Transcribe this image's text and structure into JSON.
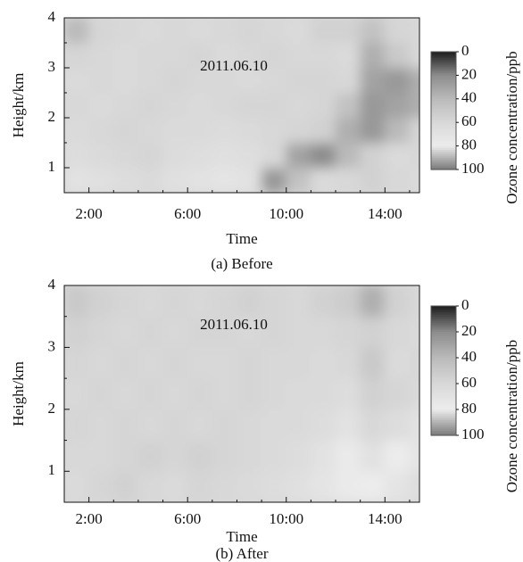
{
  "chart_data": [
    {
      "type": "heatmap",
      "annotation": "2011.06.10",
      "caption": "(a) Before",
      "x_label": "Time",
      "y_label": "Height/km",
      "colorbar_label": "Ozone concentration/ppb",
      "xlim": [
        1,
        15.4
      ],
      "ylim": [
        0.5,
        4
      ],
      "xticks": [
        {
          "value": 2,
          "label": "2:00"
        },
        {
          "value": 6,
          "label": "6:00"
        },
        {
          "value": 10,
          "label": "10:00"
        },
        {
          "value": 14,
          "label": "14:00"
        }
      ],
      "xminor_ticks": [
        1,
        3,
        4,
        5,
        7,
        8,
        9,
        11,
        12,
        13,
        15
      ],
      "yticks": [
        1,
        2,
        3,
        4
      ],
      "yminor_ticks": [
        0.5,
        1.5,
        2.5,
        3.5
      ],
      "xbins": [
        1,
        2,
        3,
        4,
        5,
        6,
        7,
        8,
        9,
        10,
        11,
        12,
        13,
        14,
        15,
        16
      ],
      "ybins": [
        0.5,
        1,
        1.5,
        2,
        2.5,
        3,
        3.5,
        4
      ],
      "z": [
        [
          70,
          68,
          65,
          62,
          68,
          70,
          72,
          70,
          25,
          45,
          62,
          60,
          55,
          60,
          62
        ],
        [
          65,
          62,
          60,
          58,
          64,
          66,
          68,
          66,
          60,
          30,
          20,
          40,
          55,
          62,
          60
        ],
        [
          62,
          60,
          58,
          60,
          62,
          62,
          64,
          62,
          60,
          58,
          55,
          35,
          25,
          40,
          58
        ],
        [
          60,
          62,
          60,
          58,
          60,
          62,
          60,
          58,
          58,
          60,
          58,
          45,
          25,
          30,
          35
        ],
        [
          62,
          60,
          62,
          60,
          58,
          60,
          60,
          62,
          60,
          58,
          58,
          60,
          30,
          25,
          35
        ],
        [
          58,
          60,
          62,
          60,
          60,
          58,
          62,
          60,
          58,
          60,
          60,
          62,
          35,
          50,
          60
        ],
        [
          40,
          58,
          60,
          62,
          60,
          62,
          60,
          58,
          60,
          62,
          55,
          55,
          45,
          58,
          60
        ]
      ],
      "clim": [
        0,
        100
      ],
      "cticks": [
        0,
        20,
        40,
        60,
        80,
        100
      ],
      "colormap": [
        "#1c1c1c",
        "#8c8c8c",
        "#bababa",
        "#d8d8d8",
        "#ececec",
        "#7a7a7a"
      ]
    },
    {
      "type": "heatmap",
      "annotation": "2011.06.10",
      "caption": "(b) After",
      "x_label": "Time",
      "y_label": "Height/km",
      "colorbar_label": "Ozone concentration/ppb",
      "xlim": [
        1,
        15.4
      ],
      "ylim": [
        0.5,
        4
      ],
      "xticks": [
        {
          "value": 2,
          "label": "2:00"
        },
        {
          "value": 6,
          "label": "6:00"
        },
        {
          "value": 10,
          "label": "10:00"
        },
        {
          "value": 14,
          "label": "14:00"
        }
      ],
      "xminor_ticks": [
        1,
        3,
        4,
        5,
        7,
        8,
        9,
        11,
        12,
        13,
        15
      ],
      "yticks": [
        1,
        2,
        3,
        4
      ],
      "yminor_ticks": [
        0.5,
        1.5,
        2.5,
        3.5
      ],
      "xbins": [
        1,
        2,
        3,
        4,
        5,
        6,
        7,
        8,
        9,
        10,
        11,
        12,
        13,
        14,
        15,
        16
      ],
      "ybins": [
        0.5,
        1,
        1.5,
        2,
        2.5,
        3,
        3.5,
        4
      ],
      "z": [
        [
          62,
          58,
          55,
          60,
          62,
          58,
          60,
          62,
          65,
          68,
          72,
          78,
          80,
          72,
          65
        ],
        [
          60,
          60,
          58,
          55,
          58,
          55,
          58,
          60,
          62,
          65,
          70,
          78,
          82,
          80,
          72
        ],
        [
          58,
          60,
          58,
          60,
          58,
          60,
          58,
          60,
          62,
          62,
          65,
          70,
          60,
          65,
          70
        ],
        [
          60,
          58,
          60,
          58,
          60,
          58,
          60,
          58,
          60,
          62,
          62,
          65,
          55,
          58,
          62
        ],
        [
          58,
          60,
          58,
          60,
          58,
          60,
          60,
          58,
          60,
          60,
          62,
          60,
          50,
          62,
          60
        ],
        [
          55,
          58,
          60,
          58,
          60,
          58,
          58,
          60,
          58,
          60,
          60,
          58,
          55,
          60,
          62
        ],
        [
          50,
          55,
          58,
          60,
          58,
          60,
          58,
          55,
          58,
          60,
          55,
          52,
          35,
          55,
          60
        ]
      ],
      "clim": [
        0,
        100
      ],
      "cticks": [
        0,
        20,
        40,
        60,
        80,
        100
      ],
      "colormap": [
        "#1c1c1c",
        "#8c8c8c",
        "#bababa",
        "#d8d8d8",
        "#ececec",
        "#7a7a7a"
      ]
    }
  ]
}
